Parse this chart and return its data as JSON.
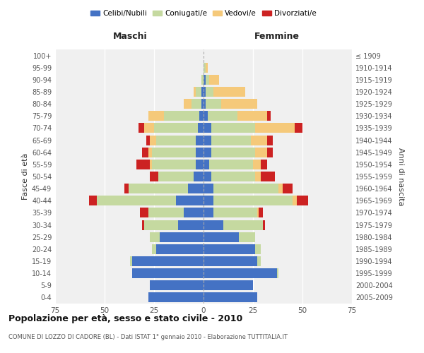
{
  "age_groups": [
    "0-4",
    "5-9",
    "10-14",
    "15-19",
    "20-24",
    "25-29",
    "30-34",
    "35-39",
    "40-44",
    "45-49",
    "50-54",
    "55-59",
    "60-64",
    "65-69",
    "70-74",
    "75-79",
    "80-84",
    "85-89",
    "90-94",
    "95-99",
    "100+"
  ],
  "birth_years": [
    "2005-2009",
    "2000-2004",
    "1995-1999",
    "1990-1994",
    "1985-1989",
    "1980-1984",
    "1975-1979",
    "1970-1974",
    "1965-1969",
    "1960-1964",
    "1955-1959",
    "1950-1954",
    "1945-1949",
    "1940-1944",
    "1935-1939",
    "1930-1934",
    "1925-1929",
    "1920-1924",
    "1915-1919",
    "1910-1914",
    "≤ 1909"
  ],
  "maschi": {
    "celibi": [
      28,
      27,
      36,
      36,
      24,
      22,
      13,
      10,
      14,
      8,
      5,
      4,
      4,
      4,
      3,
      2,
      1,
      1,
      0,
      0,
      0
    ],
    "coniugati": [
      0,
      0,
      0,
      1,
      2,
      5,
      17,
      18,
      40,
      30,
      18,
      22,
      22,
      20,
      22,
      18,
      5,
      3,
      1,
      0,
      0
    ],
    "vedovi": [
      0,
      0,
      0,
      0,
      0,
      0,
      0,
      0,
      0,
      0,
      0,
      1,
      2,
      3,
      5,
      8,
      4,
      1,
      0,
      0,
      0
    ],
    "divorziati": [
      0,
      0,
      0,
      0,
      0,
      0,
      1,
      4,
      4,
      2,
      4,
      7,
      3,
      2,
      3,
      0,
      0,
      0,
      0,
      0,
      0
    ]
  },
  "femmine": {
    "nubili": [
      27,
      25,
      37,
      27,
      26,
      18,
      10,
      5,
      5,
      5,
      4,
      3,
      4,
      4,
      4,
      2,
      1,
      1,
      1,
      0,
      0
    ],
    "coniugate": [
      0,
      0,
      1,
      2,
      3,
      8,
      20,
      22,
      40,
      33,
      22,
      22,
      22,
      20,
      22,
      15,
      8,
      4,
      2,
      1,
      0
    ],
    "vedove": [
      0,
      0,
      0,
      0,
      0,
      0,
      0,
      1,
      2,
      2,
      3,
      4,
      6,
      8,
      20,
      15,
      18,
      16,
      5,
      1,
      0
    ],
    "divorziate": [
      0,
      0,
      0,
      0,
      0,
      0,
      1,
      2,
      6,
      5,
      7,
      3,
      3,
      3,
      4,
      2,
      0,
      0,
      0,
      0,
      0
    ]
  },
  "colors": {
    "celibi": "#4472c4",
    "coniugati": "#c5d9a0",
    "vedovi": "#f5c97a",
    "divorziati": "#cc2222"
  },
  "title": "Popolazione per età, sesso e stato civile - 2010",
  "subtitle": "COMUNE DI LOZZO DI CADORE (BL) - Dati ISTAT 1° gennaio 2010 - Elaborazione TUTTITALIA.IT",
  "xlabel_left": "Maschi",
  "xlabel_right": "Femmine",
  "ylabel_left": "Fasce di età",
  "ylabel_right": "Anni di nascita",
  "xlim": 75,
  "background_color": "#ffffff",
  "plot_bg": "#f0f0f0",
  "legend_labels": [
    "Celibi/Nubili",
    "Coniugati/e",
    "Vedovi/e",
    "Divorziati/e"
  ]
}
